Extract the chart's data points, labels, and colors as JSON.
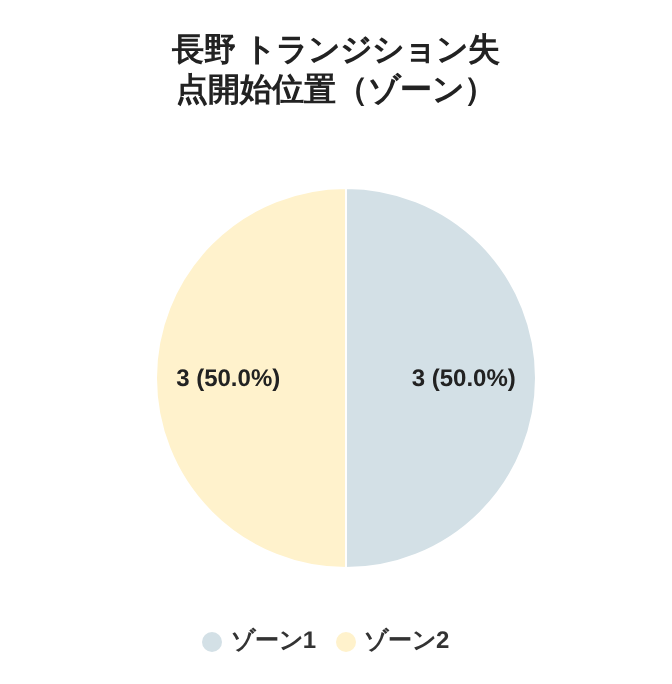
{
  "chart_data": {
    "type": "pie",
    "title": "長野 トランジション失点開始位置（ゾーン）",
    "categories": [
      "ゾーン1",
      "ゾーン2"
    ],
    "values": [
      3,
      3
    ],
    "colors": [
      "#d3e0e6",
      "#fff2cc"
    ],
    "value_labels": [
      "3 (50.0%)",
      "3 (50.0%)"
    ],
    "legend": "bottom"
  }
}
